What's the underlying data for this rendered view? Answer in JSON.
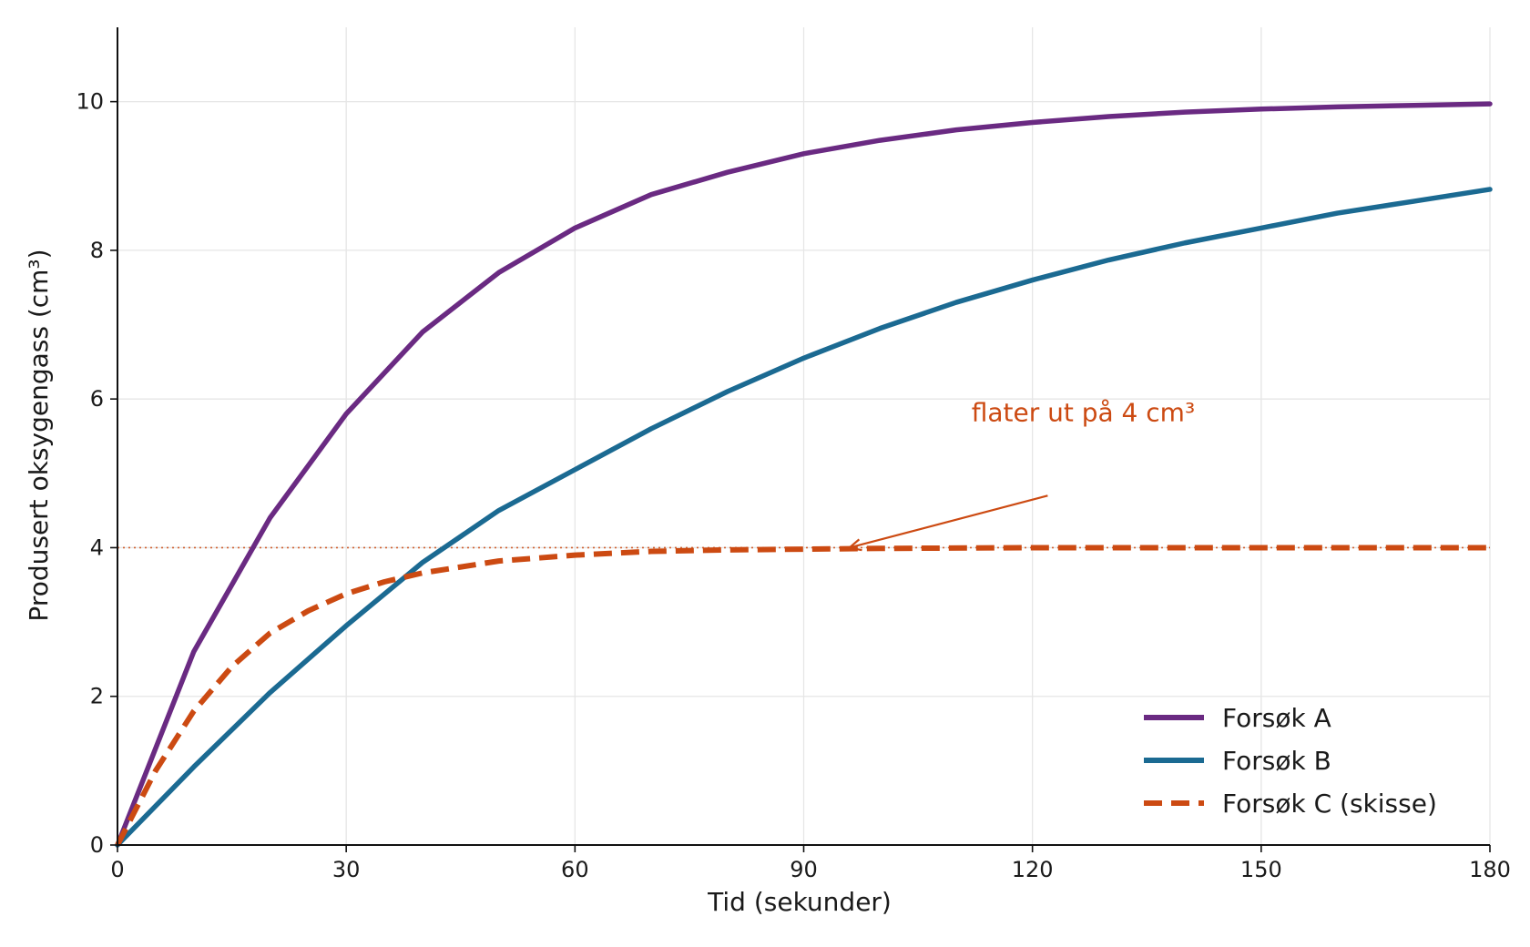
{
  "chart_data": {
    "type": "line",
    "xlabel": "Tid (sekunder)",
    "ylabel": "Produsert oksygengass (cm³)",
    "xlim": [
      0,
      180
    ],
    "ylim": [
      0,
      11
    ],
    "xticks": [
      0,
      30,
      60,
      90,
      120,
      150,
      180
    ],
    "yticks": [
      0,
      2,
      4,
      6,
      8,
      10
    ],
    "grid": true,
    "legend_position": "bottom-right",
    "series": [
      {
        "name": "Forsøk A",
        "color": "#6a2a82",
        "style": "solid",
        "x": [
          0,
          10,
          20,
          30,
          40,
          50,
          60,
          70,
          80,
          90,
          100,
          110,
          120,
          130,
          140,
          150,
          160,
          170,
          180
        ],
        "y": [
          0,
          2.6,
          4.4,
          5.8,
          6.9,
          7.7,
          8.3,
          8.75,
          9.05,
          9.3,
          9.48,
          9.62,
          9.72,
          9.8,
          9.86,
          9.9,
          9.93,
          9.95,
          9.97
        ]
      },
      {
        "name": "Forsøk B",
        "color": "#1b6a92",
        "style": "solid",
        "x": [
          0,
          10,
          20,
          30,
          40,
          50,
          60,
          70,
          80,
          90,
          100,
          110,
          120,
          130,
          140,
          150,
          160,
          170,
          180
        ],
        "y": [
          0,
          1.05,
          2.05,
          2.95,
          3.8,
          4.5,
          5.05,
          5.6,
          6.1,
          6.55,
          6.95,
          7.3,
          7.6,
          7.87,
          8.1,
          8.3,
          8.5,
          8.66,
          8.82
        ]
      },
      {
        "name": "Forsøk C (skisse)",
        "color": "#cc4a12",
        "style": "dashed",
        "x": [
          0,
          5,
          10,
          15,
          20,
          25,
          30,
          35,
          40,
          50,
          60,
          70,
          80,
          90,
          100,
          120,
          140,
          160,
          180
        ],
        "y": [
          0,
          1.0,
          1.8,
          2.4,
          2.85,
          3.15,
          3.38,
          3.54,
          3.66,
          3.82,
          3.9,
          3.95,
          3.97,
          3.98,
          3.99,
          4.0,
          4.0,
          4.0,
          4.0
        ]
      }
    ],
    "reference_line": {
      "y": 4,
      "color": "#cc4a12"
    },
    "annotation": {
      "text": "flater ut på 4 cm³",
      "color": "#cc4a12",
      "text_x": 112,
      "text_y": 5.7,
      "arrow_from": [
        122,
        4.7
      ],
      "arrow_to": [
        96,
        4.0
      ]
    }
  }
}
